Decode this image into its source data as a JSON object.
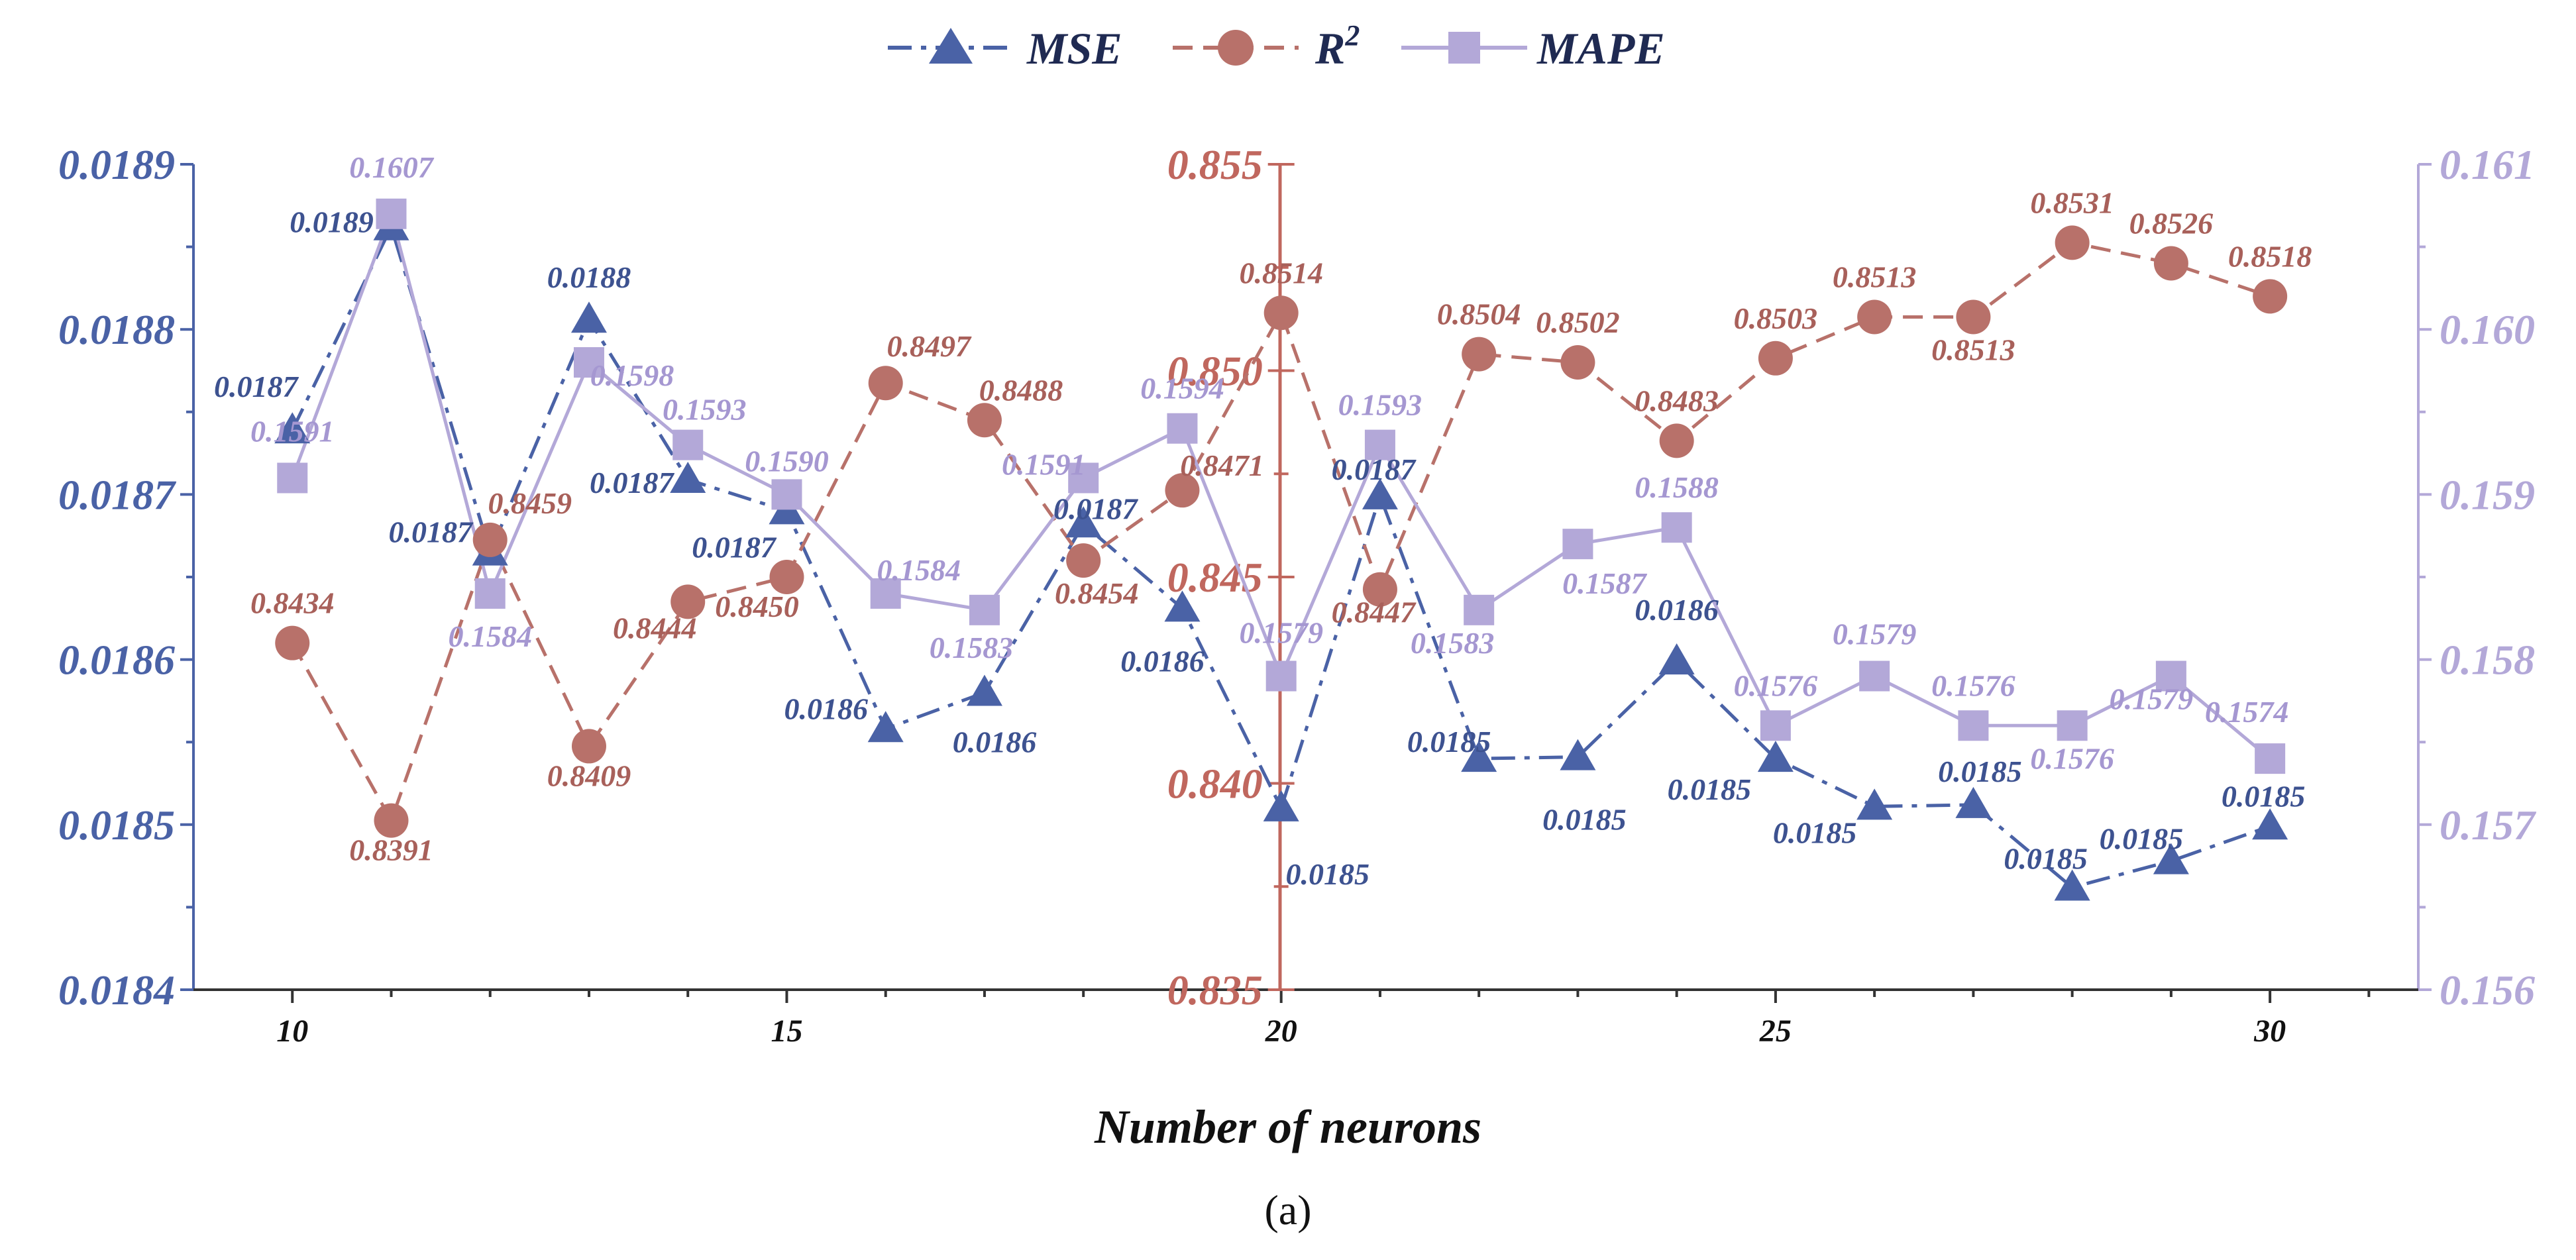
{
  "colors": {
    "mse": "#4a62a6",
    "r2": "#b8716a",
    "mape": "#b3a8d8",
    "r2_axis": "#c0675e"
  },
  "chart_data": {
    "type": "line",
    "caption": "(a)",
    "xlabel": "Number of neurons",
    "x": [
      10,
      11,
      12,
      13,
      14,
      15,
      16,
      17,
      18,
      19,
      20,
      21,
      22,
      23,
      24,
      25,
      26,
      27,
      28,
      29,
      30
    ],
    "xlim": [
      9,
      31.5
    ],
    "xticks": [
      10,
      15,
      20,
      25,
      30
    ],
    "xtick_labels": [
      "10",
      "15",
      "20",
      "25",
      "30"
    ],
    "axes": {
      "left": {
        "series": "MSE",
        "ylim": [
          0.0184,
          0.0189
        ],
        "ticks": [
          0.0184,
          0.0185,
          0.0186,
          0.0187,
          0.0188,
          0.0189
        ],
        "tick_labels": [
          "0.0184",
          "0.0185",
          "0.0186",
          "0.0187",
          "0.0188",
          "0.0189"
        ]
      },
      "middle": {
        "series": "R2",
        "at_x": 20,
        "ylim": [
          0.835,
          0.855
        ],
        "ticks": [
          0.835,
          0.84,
          0.845,
          0.85,
          0.855
        ],
        "tick_labels": [
          "0.835",
          "0.840",
          "0.845",
          "0.850",
          "0.855"
        ]
      },
      "right": {
        "series": "MAPE",
        "ylim": [
          0.156,
          0.161
        ],
        "ticks": [
          0.156,
          0.157,
          0.158,
          0.159,
          0.16,
          0.161
        ],
        "tick_labels": [
          "0.156",
          "0.157",
          "0.158",
          "0.159",
          "0.160",
          "0.161"
        ]
      }
    },
    "series": [
      {
        "key": "mse",
        "name": "MSE",
        "marker": "triangle",
        "line": "dashdot",
        "axis": "left",
        "values": [
          0.018739,
          0.018862,
          0.018665,
          0.018806,
          0.018709,
          0.01869,
          0.018558,
          0.01858,
          0.018682,
          0.018631,
          0.01851,
          0.018699,
          0.01854,
          0.018541,
          0.018599,
          0.01854,
          0.018511,
          0.018512,
          0.018462,
          0.018478,
          0.018499
        ],
        "labels": [
          "0.0187",
          "0.0189",
          "0.0187",
          "0.0188",
          "0.0187",
          "0.0187",
          "0.0186",
          "0.0186",
          "0.0187",
          "0.0186",
          "0.0185",
          "0.0187",
          "0.0185",
          "0.0185",
          "0.0186",
          "0.0185",
          "0.0185",
          "0.0185",
          "0.0185",
          "0.0185",
          "0.0185"
        ]
      },
      {
        "key": "r2",
        "name": "R",
        "name_sup": "2",
        "marker": "circle",
        "line": "dashed",
        "axis": "middle",
        "values": [
          0.8434,
          0.8391,
          0.8459,
          0.8409,
          0.8444,
          0.845,
          0.8497,
          0.8488,
          0.8454,
          0.8471,
          0.8514,
          0.8447,
          0.8504,
          0.8502,
          0.8483,
          0.8503,
          0.8513,
          0.8513,
          0.8531,
          0.8526,
          0.8518
        ],
        "labels": [
          "0.8434",
          "0.8391",
          "0.8459",
          "0.8409",
          "0.8444",
          "0.8450",
          "0.8497",
          "0.8488",
          "0.8454",
          "0.8471",
          "0.8514",
          "0.8447",
          "0.8504",
          "0.8502",
          "0.8483",
          "0.8503",
          "0.8513",
          "0.8513",
          "0.8531",
          "0.8526",
          "0.8518"
        ]
      },
      {
        "key": "mape",
        "name": "MAPE",
        "marker": "square",
        "line": "solid",
        "axis": "right",
        "values": [
          0.1591,
          0.1607,
          0.1584,
          0.1598,
          0.1593,
          0.159,
          0.1584,
          0.1583,
          0.1591,
          0.1594,
          0.1579,
          0.1593,
          0.1583,
          0.1587,
          0.1588,
          0.1576,
          0.1579,
          0.1576,
          0.1576,
          0.1579,
          0.1574
        ],
        "labels": [
          "0.1591",
          "0.1607",
          "0.1584",
          "0.1598",
          "0.1593",
          "0.1590",
          "0.1584",
          "0.1583",
          "0.1591",
          "0.1594",
          "0.1579",
          "0.1593",
          "0.1583",
          "0.1587",
          "0.1588",
          "0.1576",
          "0.1579",
          "0.1576",
          "0.1576",
          "0.1579",
          "0.1574"
        ]
      }
    ]
  }
}
